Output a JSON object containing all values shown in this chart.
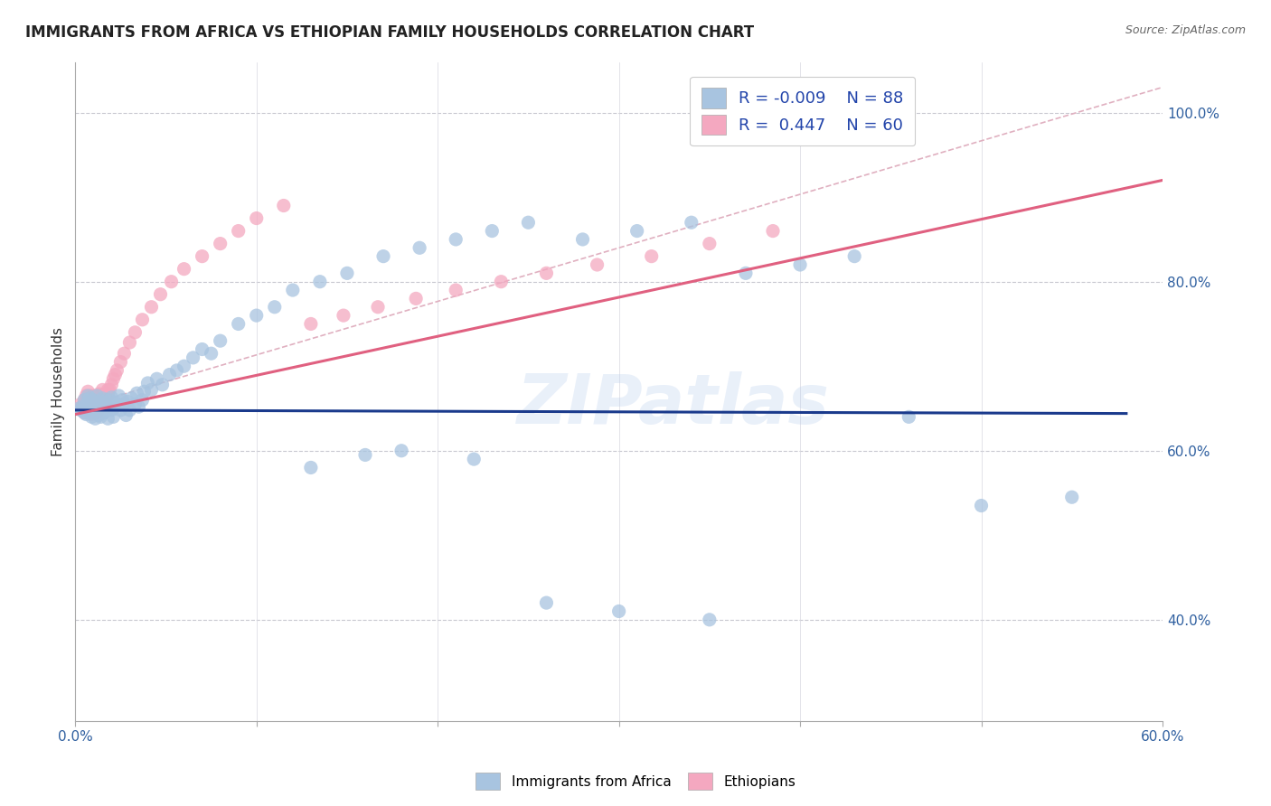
{
  "title": "IMMIGRANTS FROM AFRICA VS ETHIOPIAN FAMILY HOUSEHOLDS CORRELATION CHART",
  "source": "Source: ZipAtlas.com",
  "ylabel": "Family Households",
  "xlim": [
    0.0,
    0.6
  ],
  "ylim": [
    0.28,
    1.06
  ],
  "xtick_vals": [
    0.0,
    0.1,
    0.2,
    0.3,
    0.4,
    0.5,
    0.6
  ],
  "xtick_show": [
    0.0,
    0.6
  ],
  "xtick_labels_show": [
    "0.0%",
    "60.0%"
  ],
  "ytick_vals": [
    0.4,
    0.6,
    0.8,
    1.0
  ],
  "ytick_labels": [
    "40.0%",
    "60.0%",
    "80.0%",
    "100.0%"
  ],
  "watermark": "ZIPatlas",
  "legend_r1": "-0.009",
  "legend_n1": "88",
  "legend_r2": "0.447",
  "legend_n2": "60",
  "blue_color": "#a8c4e0",
  "pink_color": "#f4a8c0",
  "blue_line_color": "#1a3a8c",
  "pink_line_color": "#e06080",
  "diagonal_color": "#c8c8d8",
  "title_fontsize": 12,
  "blue_scatter_x": [
    0.002,
    0.003,
    0.004,
    0.005,
    0.005,
    0.006,
    0.007,
    0.007,
    0.008,
    0.008,
    0.009,
    0.009,
    0.01,
    0.01,
    0.011,
    0.011,
    0.012,
    0.012,
    0.013,
    0.013,
    0.014,
    0.014,
    0.015,
    0.015,
    0.016,
    0.016,
    0.017,
    0.017,
    0.018,
    0.018,
    0.019,
    0.02,
    0.02,
    0.021,
    0.021,
    0.022,
    0.023,
    0.024,
    0.025,
    0.026,
    0.027,
    0.028,
    0.029,
    0.03,
    0.031,
    0.033,
    0.034,
    0.035,
    0.037,
    0.038,
    0.04,
    0.042,
    0.045,
    0.048,
    0.052,
    0.056,
    0.06,
    0.065,
    0.07,
    0.075,
    0.08,
    0.09,
    0.1,
    0.11,
    0.12,
    0.135,
    0.15,
    0.17,
    0.19,
    0.21,
    0.23,
    0.25,
    0.28,
    0.31,
    0.34,
    0.37,
    0.4,
    0.43,
    0.46,
    0.5,
    0.22,
    0.18,
    0.16,
    0.13,
    0.26,
    0.3,
    0.35,
    0.55
  ],
  "blue_scatter_y": [
    0.65,
    0.648,
    0.652,
    0.645,
    0.66,
    0.643,
    0.658,
    0.665,
    0.647,
    0.662,
    0.64,
    0.655,
    0.645,
    0.66,
    0.65,
    0.638,
    0.648,
    0.665,
    0.642,
    0.658,
    0.653,
    0.64,
    0.648,
    0.662,
    0.655,
    0.645,
    0.66,
    0.648,
    0.652,
    0.638,
    0.66,
    0.648,
    0.663,
    0.65,
    0.64,
    0.657,
    0.653,
    0.665,
    0.648,
    0.66,
    0.655,
    0.642,
    0.658,
    0.648,
    0.662,
    0.655,
    0.668,
    0.652,
    0.66,
    0.67,
    0.68,
    0.672,
    0.685,
    0.678,
    0.69,
    0.695,
    0.7,
    0.71,
    0.72,
    0.715,
    0.73,
    0.75,
    0.76,
    0.77,
    0.79,
    0.8,
    0.81,
    0.83,
    0.84,
    0.85,
    0.86,
    0.87,
    0.85,
    0.86,
    0.87,
    0.81,
    0.82,
    0.83,
    0.64,
    0.535,
    0.59,
    0.6,
    0.595,
    0.58,
    0.42,
    0.41,
    0.4,
    0.545
  ],
  "pink_scatter_x": [
    0.002,
    0.003,
    0.004,
    0.005,
    0.005,
    0.006,
    0.006,
    0.007,
    0.007,
    0.008,
    0.008,
    0.009,
    0.009,
    0.01,
    0.01,
    0.011,
    0.011,
    0.012,
    0.012,
    0.013,
    0.013,
    0.014,
    0.014,
    0.015,
    0.015,
    0.016,
    0.017,
    0.017,
    0.018,
    0.018,
    0.019,
    0.02,
    0.021,
    0.022,
    0.023,
    0.025,
    0.027,
    0.03,
    0.033,
    0.037,
    0.042,
    0.047,
    0.053,
    0.06,
    0.07,
    0.08,
    0.09,
    0.1,
    0.115,
    0.13,
    0.148,
    0.167,
    0.188,
    0.21,
    0.235,
    0.26,
    0.288,
    0.318,
    0.35,
    0.385
  ],
  "pink_scatter_y": [
    0.65,
    0.655,
    0.648,
    0.66,
    0.645,
    0.658,
    0.665,
    0.648,
    0.67,
    0.652,
    0.665,
    0.643,
    0.658,
    0.65,
    0.665,
    0.648,
    0.66,
    0.655,
    0.645,
    0.658,
    0.667,
    0.652,
    0.665,
    0.658,
    0.672,
    0.66,
    0.668,
    0.655,
    0.672,
    0.665,
    0.672,
    0.678,
    0.685,
    0.69,
    0.695,
    0.705,
    0.715,
    0.728,
    0.74,
    0.755,
    0.77,
    0.785,
    0.8,
    0.815,
    0.83,
    0.845,
    0.86,
    0.875,
    0.89,
    0.75,
    0.76,
    0.77,
    0.78,
    0.79,
    0.8,
    0.81,
    0.82,
    0.83,
    0.845,
    0.86
  ],
  "blue_line_x": [
    0.0,
    0.58
  ],
  "blue_line_y": [
    0.648,
    0.644
  ],
  "pink_line_x": [
    0.0,
    0.6
  ],
  "pink_line_y": [
    0.643,
    0.92
  ],
  "diag_line_x": [
    0.0,
    0.6
  ],
  "diag_line_y": [
    0.65,
    1.03
  ]
}
